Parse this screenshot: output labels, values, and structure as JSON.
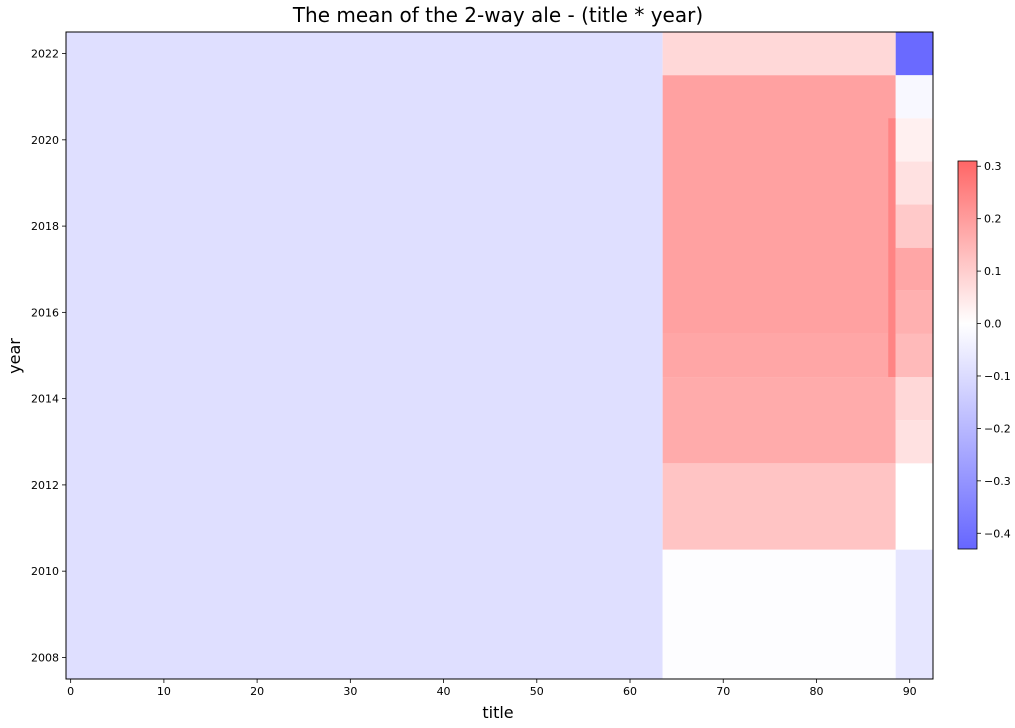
{
  "chart_data": {
    "type": "heatmap",
    "title": "The mean of the 2-way ale - (title * year)",
    "xlabel": "title",
    "ylabel": "year",
    "xlim": [
      -0.5,
      92.5
    ],
    "ylim": [
      2007.5,
      2022.5
    ],
    "x_ticks": [
      0,
      10,
      20,
      30,
      40,
      50,
      60,
      70,
      80,
      90
    ],
    "y_ticks": [
      2008,
      2010,
      2012,
      2014,
      2016,
      2018,
      2020,
      2022
    ],
    "colormap": [
      "#6666ff",
      "#ffffff",
      "#ff6666"
    ],
    "color_range": [
      -0.43,
      0.31
    ],
    "colorbar_ticks": [
      0.3,
      0.2,
      0.1,
      0.0,
      -0.1,
      -0.2,
      -0.3,
      -0.4
    ],
    "colorbar_tick_labels": [
      "0.3",
      "0.2",
      "0.1",
      "0.0",
      "−0.1",
      "−0.2",
      "−0.3",
      "−0.4"
    ],
    "cells": [
      {
        "x0": -0.5,
        "x1": 63.5,
        "y0": 2007.5,
        "y1": 2022.5,
        "value": -0.09
      },
      {
        "x0": 63.5,
        "x1": 88.5,
        "y0": 2007.5,
        "y1": 2010.5,
        "value": -0.005
      },
      {
        "x0": 63.5,
        "x1": 88.5,
        "y0": 2010.5,
        "y1": 2012.5,
        "value": 0.12
      },
      {
        "x0": 63.5,
        "x1": 88.5,
        "y0": 2012.5,
        "y1": 2014.5,
        "value": 0.17
      },
      {
        "x0": 63.5,
        "x1": 88.5,
        "y0": 2014.5,
        "y1": 2015.5,
        "value": 0.18
      },
      {
        "x0": 63.5,
        "x1": 88.5,
        "y0": 2015.5,
        "y1": 2021.5,
        "value": 0.19
      },
      {
        "x0": 63.5,
        "x1": 88.5,
        "y0": 2021.5,
        "y1": 2022.5,
        "value": 0.08
      },
      {
        "x0": 87.7,
        "x1": 88.5,
        "y0": 2014.5,
        "y1": 2020.5,
        "value": 0.25
      },
      {
        "x0": 88.5,
        "x1": 92.5,
        "y0": 2007.5,
        "y1": 2010.5,
        "value": -0.07
      },
      {
        "x0": 88.5,
        "x1": 92.5,
        "y0": 2010.5,
        "y1": 2012.5,
        "value": 0.0
      },
      {
        "x0": 88.5,
        "x1": 92.5,
        "y0": 2012.5,
        "y1": 2013.5,
        "value": 0.06
      },
      {
        "x0": 88.5,
        "x1": 92.5,
        "y0": 2013.5,
        "y1": 2014.5,
        "value": 0.08
      },
      {
        "x0": 88.5,
        "x1": 92.5,
        "y0": 2014.5,
        "y1": 2015.5,
        "value": 0.14
      },
      {
        "x0": 88.5,
        "x1": 92.5,
        "y0": 2015.5,
        "y1": 2016.5,
        "value": 0.16
      },
      {
        "x0": 88.5,
        "x1": 92.5,
        "y0": 2016.5,
        "y1": 2017.5,
        "value": 0.18
      },
      {
        "x0": 88.5,
        "x1": 92.5,
        "y0": 2017.5,
        "y1": 2018.5,
        "value": 0.11
      },
      {
        "x0": 88.5,
        "x1": 92.5,
        "y0": 2018.5,
        "y1": 2019.5,
        "value": 0.06
      },
      {
        "x0": 88.5,
        "x1": 92.5,
        "y0": 2019.5,
        "y1": 2020.5,
        "value": 0.03
      },
      {
        "x0": 88.5,
        "x1": 92.5,
        "y0": 2020.5,
        "y1": 2021.5,
        "value": -0.02
      },
      {
        "x0": 88.5,
        "x1": 92.5,
        "y0": 2021.5,
        "y1": 2022.5,
        "value": -0.42
      }
    ]
  }
}
